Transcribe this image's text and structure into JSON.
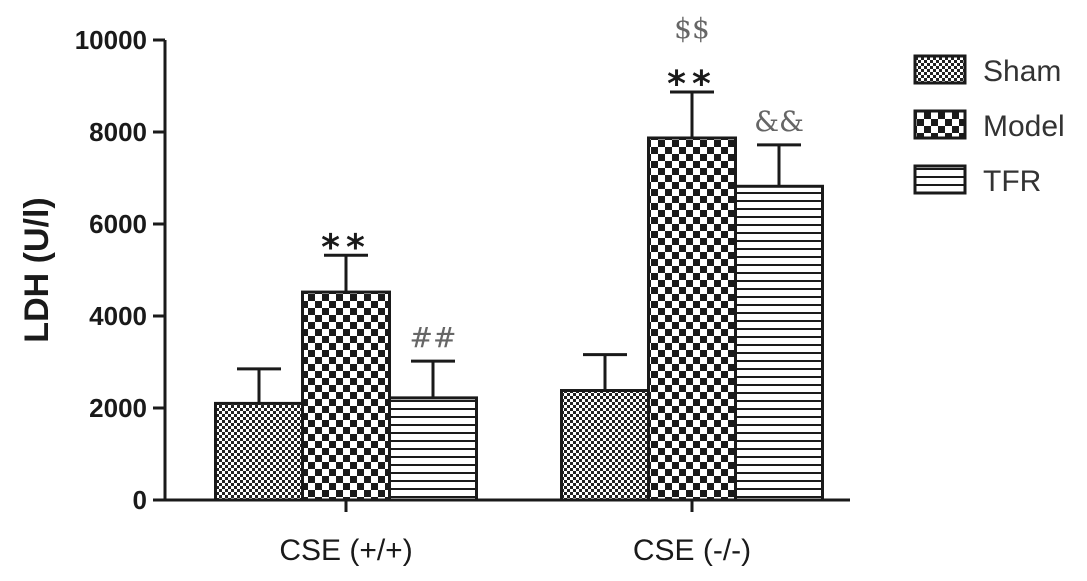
{
  "chart_data": {
    "type": "bar",
    "ylabel": "LDH (U/l)",
    "xlabel": "",
    "ylim": [
      0,
      10000
    ],
    "yticks": [
      0,
      2000,
      4000,
      6000,
      8000,
      10000
    ],
    "categories": [
      "CSE (+/+)",
      "CSE (-/-)"
    ],
    "series": [
      {
        "name": "Sham",
        "pattern": "fine-dots",
        "values": [
          2100,
          2380
        ],
        "errors": [
          750,
          780
        ]
      },
      {
        "name": "Model",
        "pattern": "checker",
        "values": [
          4520,
          7870
        ],
        "errors": [
          800,
          1000
        ]
      },
      {
        "name": "TFR",
        "pattern": "stripes",
        "values": [
          2220,
          6820
        ],
        "errors": [
          800,
          900
        ]
      }
    ],
    "annotations": [
      {
        "category": 0,
        "series": 1,
        "text": "**",
        "style": "star"
      },
      {
        "category": 0,
        "series": 2,
        "text": "##",
        "style": "sym"
      },
      {
        "category": 1,
        "series": 1,
        "text": "**",
        "style": "star"
      },
      {
        "category": 1,
        "series": 1,
        "text": "$$",
        "style": "sym",
        "above": true
      },
      {
        "category": 1,
        "series": 2,
        "text": "&&",
        "style": "sym"
      }
    ],
    "legend_position": "top-right",
    "grid": false
  }
}
